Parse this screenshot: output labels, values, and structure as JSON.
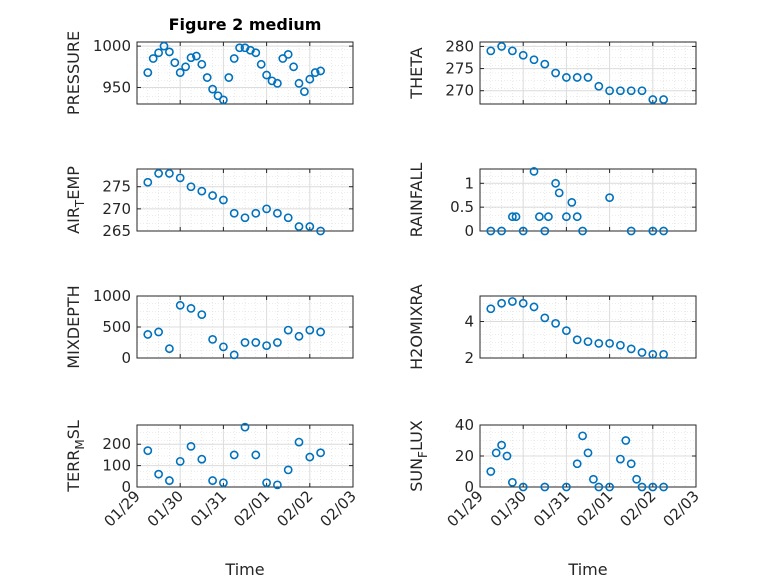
{
  "figure_title": "Figure 2 medium",
  "chart_data": [
    {
      "type": "scatter",
      "ylabel": "PRESSURE",
      "ylim": [
        930,
        1005
      ],
      "yticks": [
        "950",
        "1000"
      ],
      "x": [
        "01/29 06:00",
        "01/29 09:00",
        "01/29 12:00",
        "01/29 15:00",
        "01/29 18:00",
        "01/29 21:00",
        "01/30 00:00",
        "01/30 03:00",
        "01/30 06:00",
        "01/30 09:00",
        "01/30 12:00",
        "01/30 15:00",
        "01/30 18:00",
        "01/30 21:00",
        "01/31 00:00",
        "01/31 03:00",
        "01/31 06:00",
        "01/31 09:00",
        "01/31 12:00",
        "01/31 15:00",
        "01/31 18:00",
        "01/31 21:00",
        "02/01 00:00",
        "02/01 03:00",
        "02/01 06:00",
        "02/01 09:00",
        "02/01 12:00",
        "02/01 15:00",
        "02/01 18:00",
        "02/01 21:00",
        "02/02 00:00",
        "02/02 03:00",
        "02/02 06:00"
      ],
      "values": [
        968,
        985,
        992,
        1000,
        993,
        980,
        968,
        975,
        986,
        988,
        978,
        962,
        948,
        940,
        935,
        962,
        985,
        998,
        998,
        995,
        992,
        978,
        965,
        958,
        955,
        985,
        990,
        975,
        955,
        945,
        960,
        968,
        970
      ]
    },
    {
      "type": "scatter",
      "ylabel": "THETA",
      "ylim": [
        267,
        281
      ],
      "yticks": [
        "270",
        "275",
        "280"
      ],
      "x": [
        "01/29 06:00",
        "01/29 12:00",
        "01/29 18:00",
        "01/30 00:00",
        "01/30 06:00",
        "01/30 12:00",
        "01/30 18:00",
        "01/31 00:00",
        "01/31 06:00",
        "01/31 12:00",
        "01/31 18:00",
        "02/01 00:00",
        "02/01 06:00",
        "02/01 12:00",
        "02/01 18:00",
        "02/02 00:00",
        "02/02 06:00"
      ],
      "values": [
        279,
        280,
        279,
        278,
        277,
        276,
        274,
        273,
        273,
        273,
        271,
        270,
        270,
        270,
        270,
        268,
        268
      ]
    },
    {
      "type": "scatter",
      "ylabel": "AIR_TEMP",
      "ylim": [
        265,
        279
      ],
      "yticks": [
        "265",
        "270",
        "275"
      ],
      "x": [
        "01/29 06:00",
        "01/29 12:00",
        "01/29 18:00",
        "01/30 00:00",
        "01/30 06:00",
        "01/30 12:00",
        "01/30 18:00",
        "01/31 00:00",
        "01/31 06:00",
        "01/31 12:00",
        "01/31 18:00",
        "02/01 00:00",
        "02/01 06:00",
        "02/01 12:00",
        "02/01 18:00",
        "02/02 00:00",
        "02/02 06:00"
      ],
      "values": [
        276,
        278,
        278,
        277,
        275,
        274,
        273,
        272,
        269,
        268,
        269,
        270,
        269,
        268,
        266,
        266,
        265
      ]
    },
    {
      "type": "scatter",
      "ylabel": "RAINFALL",
      "ylim": [
        0,
        1.3
      ],
      "yticks": [
        "0",
        "0.5",
        "1"
      ],
      "x": [
        "01/29 06:00",
        "01/29 12:00",
        "01/29 18:00",
        "01/29 20:00",
        "01/30 00:00",
        "01/30 06:00",
        "01/30 09:00",
        "01/30 12:00",
        "01/30 14:00",
        "01/30 18:00",
        "01/30 20:00",
        "01/31 00:00",
        "01/31 03:00",
        "01/31 06:00",
        "01/31 09:00",
        "02/01 00:00",
        "02/01 12:00",
        "02/02 00:00",
        "02/02 06:00"
      ],
      "values": [
        0,
        0,
        0.3,
        0.3,
        0,
        1.25,
        0.3,
        0,
        0.3,
        1.0,
        0.8,
        0.3,
        0.6,
        0.3,
        0,
        0.7,
        0,
        0,
        0
      ]
    },
    {
      "type": "scatter",
      "ylabel": "MIXDEPTH",
      "ylim": [
        0,
        1000
      ],
      "yticks": [
        "0",
        "500",
        "1000"
      ],
      "x": [
        "01/29 06:00",
        "01/29 12:00",
        "01/29 18:00",
        "01/30 00:00",
        "01/30 06:00",
        "01/30 12:00",
        "01/30 18:00",
        "01/31 00:00",
        "01/31 06:00",
        "01/31 12:00",
        "01/31 18:00",
        "02/01 00:00",
        "02/01 06:00",
        "02/01 12:00",
        "02/01 18:00",
        "02/02 00:00",
        "02/02 06:00"
      ],
      "values": [
        380,
        420,
        150,
        850,
        800,
        700,
        300,
        180,
        50,
        250,
        250,
        200,
        250,
        450,
        350,
        450,
        420
      ]
    },
    {
      "type": "scatter",
      "ylabel": "H2OMIXRA",
      "ylim": [
        2,
        5.4
      ],
      "yticks": [
        "2",
        "4"
      ],
      "x": [
        "01/29 06:00",
        "01/29 12:00",
        "01/29 18:00",
        "01/30 00:00",
        "01/30 06:00",
        "01/30 12:00",
        "01/30 18:00",
        "01/31 00:00",
        "01/31 06:00",
        "01/31 12:00",
        "01/31 18:00",
        "02/01 00:00",
        "02/01 06:00",
        "02/01 12:00",
        "02/01 18:00",
        "02/02 00:00",
        "02/02 06:00"
      ],
      "values": [
        4.7,
        5.0,
        5.1,
        5.0,
        4.8,
        4.2,
        3.9,
        3.5,
        3.0,
        2.9,
        2.8,
        2.8,
        2.7,
        2.5,
        2.3,
        2.2,
        2.2
      ]
    },
    {
      "type": "scatter",
      "ylabel": "TERR_MSL",
      "ylim": [
        0,
        290
      ],
      "yticks": [
        "0",
        "100",
        "200"
      ],
      "x": [
        "01/29 06:00",
        "01/29 12:00",
        "01/29 18:00",
        "01/30 00:00",
        "01/30 06:00",
        "01/30 12:00",
        "01/30 18:00",
        "01/31 00:00",
        "01/31 06:00",
        "01/31 12:00",
        "01/31 18:00",
        "02/01 00:00",
        "02/01 06:00",
        "02/01 12:00",
        "02/01 18:00",
        "02/02 00:00",
        "02/02 06:00"
      ],
      "values": [
        170,
        60,
        30,
        120,
        190,
        130,
        30,
        20,
        150,
        280,
        150,
        20,
        10,
        80,
        210,
        140,
        160
      ]
    },
    {
      "type": "scatter",
      "ylabel": "SUN_FLUX",
      "ylim": [
        0,
        40
      ],
      "yticks": [
        "0",
        "20",
        "40"
      ],
      "x": [
        "01/29 06:00",
        "01/29 09:00",
        "01/29 12:00",
        "01/29 15:00",
        "01/29 18:00",
        "01/30 00:00",
        "01/30 12:00",
        "01/31 00:00",
        "01/31 06:00",
        "01/31 09:00",
        "01/31 12:00",
        "01/31 15:00",
        "01/31 18:00",
        "02/01 00:00",
        "02/01 06:00",
        "02/01 09:00",
        "02/01 12:00",
        "02/01 15:00",
        "02/01 18:00",
        "02/02 00:00",
        "02/02 06:00"
      ],
      "values": [
        10,
        22,
        27,
        20,
        3,
        0,
        0,
        0,
        15,
        33,
        22,
        5,
        0,
        0,
        18,
        30,
        15,
        5,
        0,
        0,
        0
      ]
    }
  ],
  "shared": {
    "xticks": [
      "01/29",
      "01/30",
      "01/31",
      "02/01",
      "02/02",
      "02/03"
    ],
    "xlim": [
      "01/29",
      "02/03"
    ],
    "xlabel": "Time",
    "marker_color": "#0072BD",
    "grid": true
  }
}
